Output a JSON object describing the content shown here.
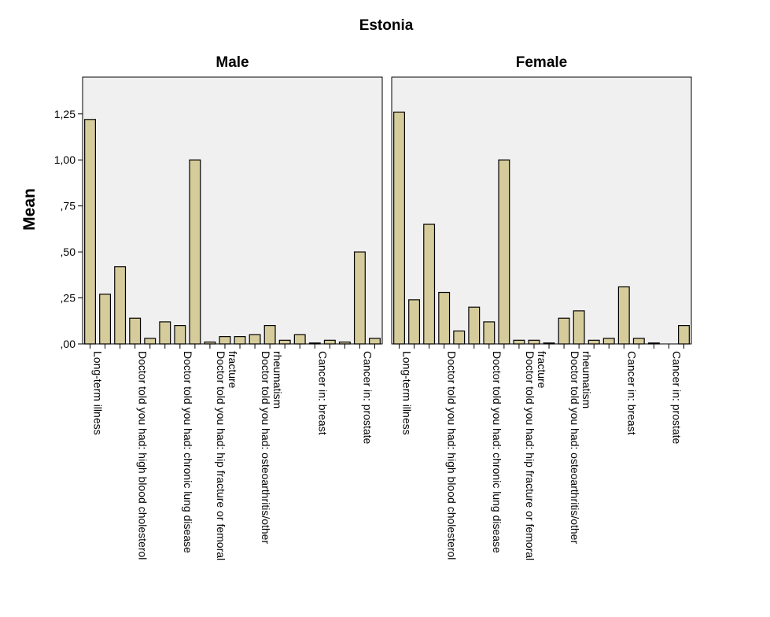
{
  "chart_data": {
    "type": "bar",
    "title": "Estonia",
    "ylabel": "Mean",
    "xlabel": "",
    "ylim": [
      0,
      1.45
    ],
    "yticks": [
      0,
      0.25,
      0.5,
      0.75,
      1.0,
      1.25
    ],
    "ytick_labels": [
      ",00",
      ",25",
      ",50",
      ",75",
      "1,00",
      "1,25"
    ],
    "grid": false,
    "legend": "none",
    "colors": {
      "bar_fill": "#d6cc9b",
      "bar_stroke": "#000000",
      "panel_bg": "#f0f0f0"
    },
    "category_labels": [
      {
        "index": 0,
        "lines": [
          "Long-term illness"
        ]
      },
      {
        "index": 3,
        "lines": [
          "Doctor told you had: high blood cholesterol"
        ]
      },
      {
        "index": 6,
        "lines": [
          "Doctor told you had: chronic lung disease"
        ]
      },
      {
        "index": 9,
        "lines": [
          "Doctor told you had: hip fracture or femoral",
          "fracture"
        ]
      },
      {
        "index": 12,
        "lines": [
          "Doctor told you had: osteoarthritis/other",
          "rheumatism"
        ]
      },
      {
        "index": 15,
        "lines": [
          "Cancer in: breast"
        ]
      },
      {
        "index": 18,
        "lines": [
          "Cancer in: prostate"
        ]
      }
    ],
    "series": [
      {
        "name": "Male",
        "values": [
          1.22,
          0.27,
          0.42,
          0.14,
          0.03,
          0.12,
          0.1,
          1.0,
          0.01,
          0.04,
          0.04,
          0.05,
          0.1,
          0.02,
          0.05,
          0.005,
          0.02,
          0.01,
          0.5,
          0.03
        ]
      },
      {
        "name": "Female",
        "values": [
          1.26,
          0.24,
          0.65,
          0.28,
          0.07,
          0.2,
          0.12,
          1.0,
          0.02,
          0.02,
          0.005,
          0.14,
          0.18,
          0.02,
          0.03,
          0.31,
          0.03,
          0.005,
          0.0,
          0.1
        ]
      }
    ]
  }
}
